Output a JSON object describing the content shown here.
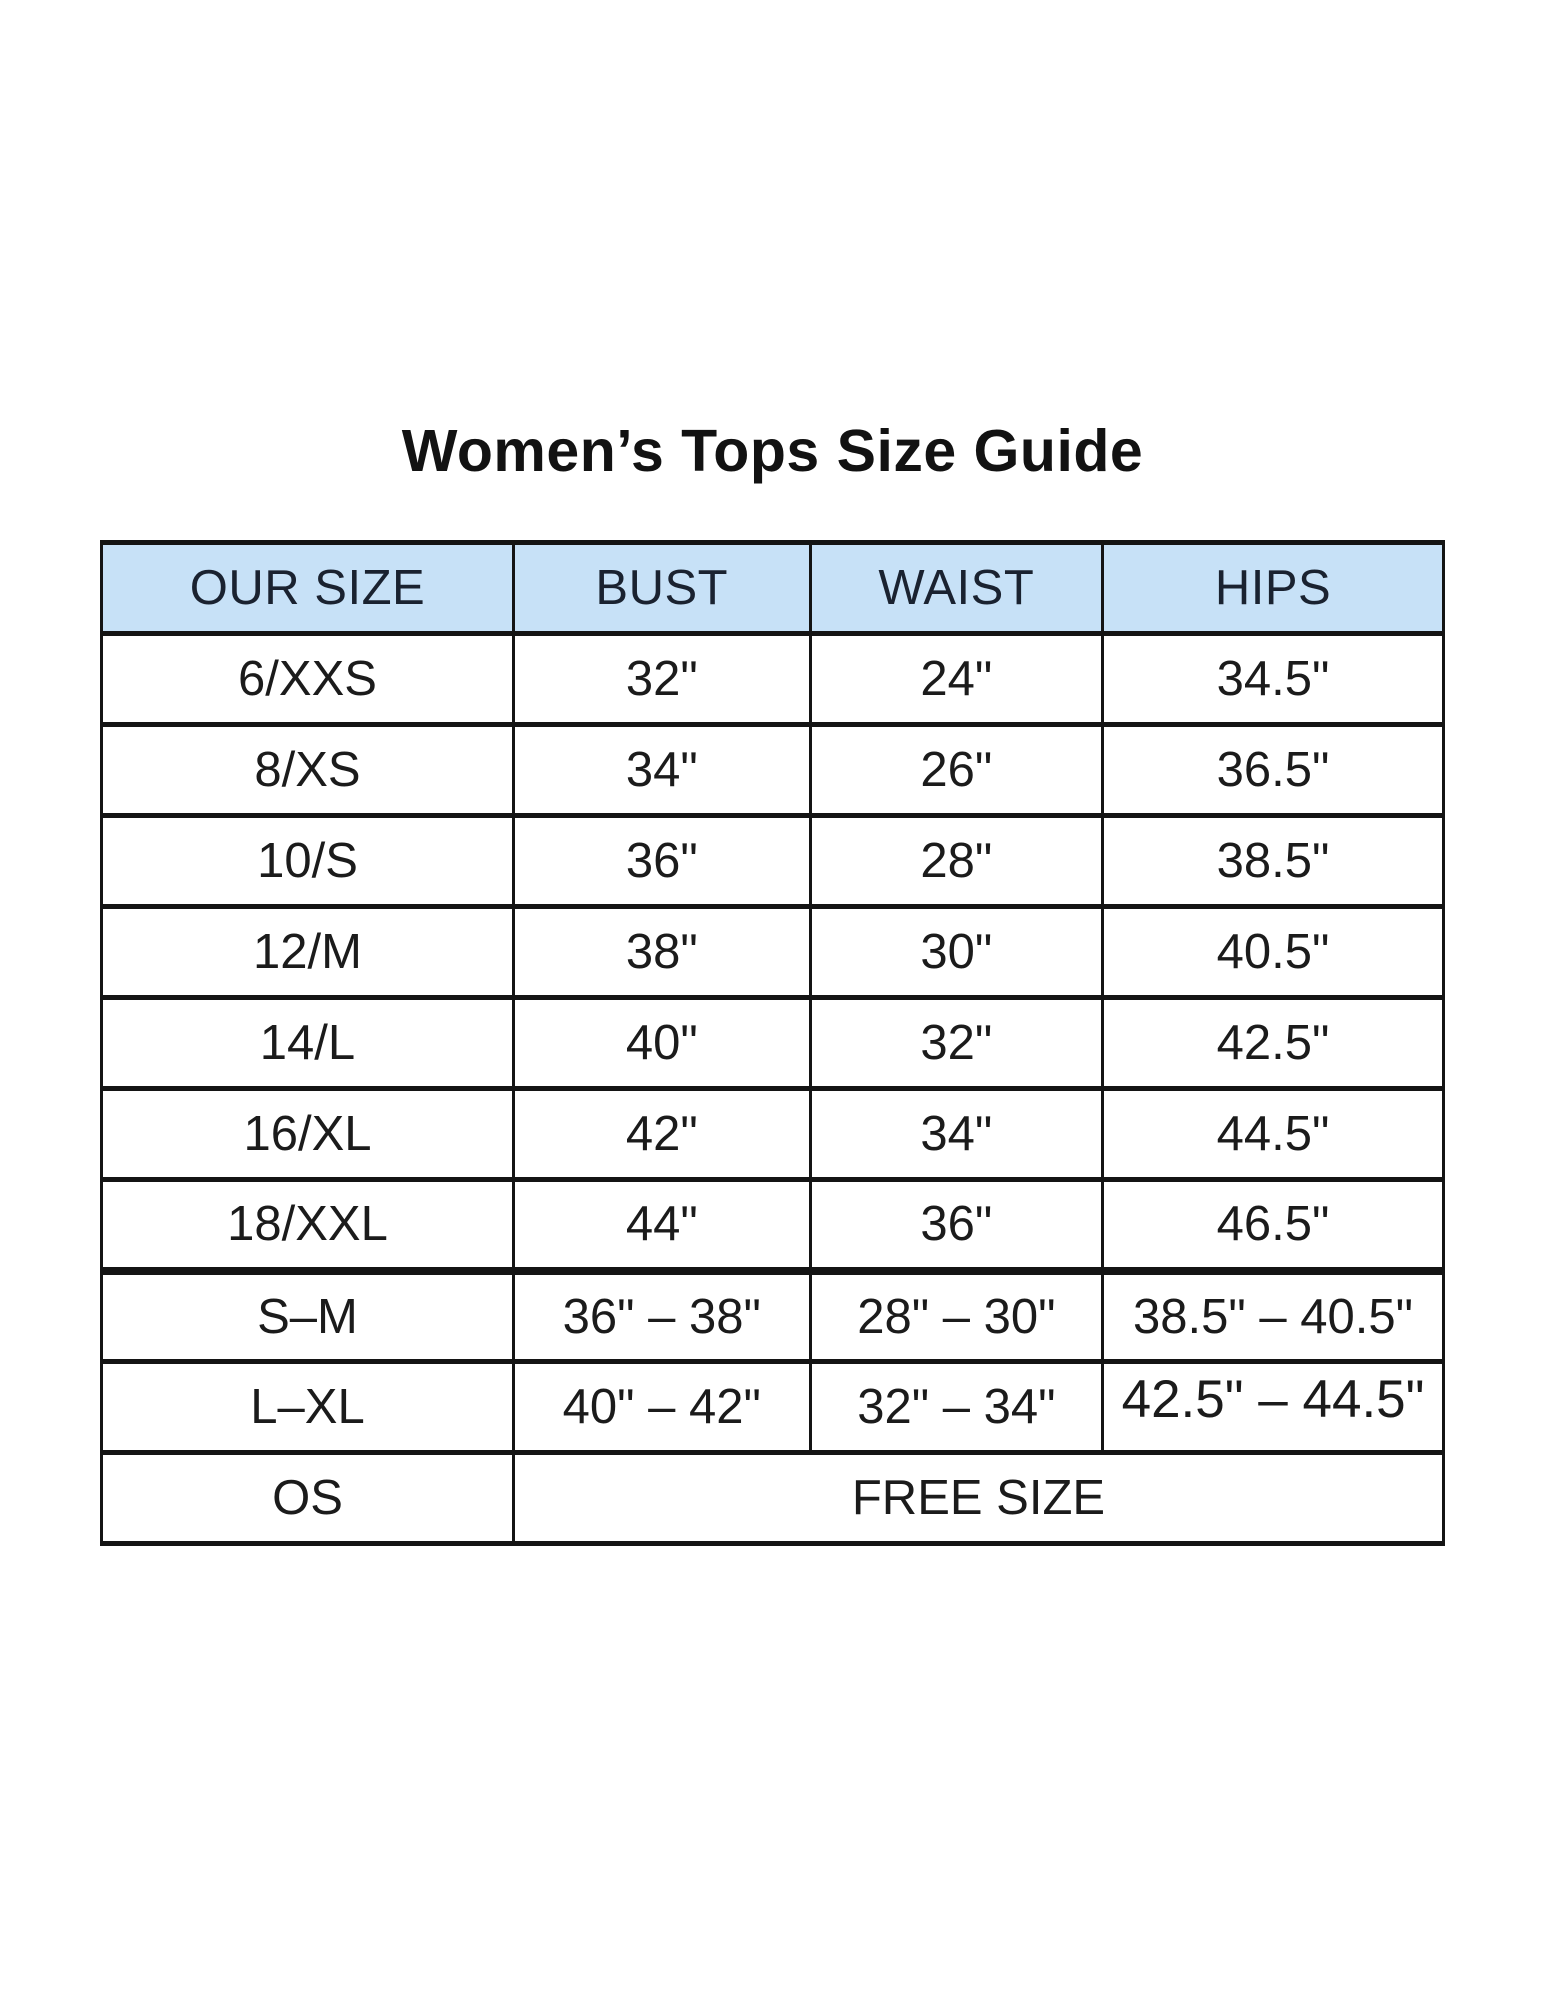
{
  "page": {
    "title": "Women’s Tops Size Guide",
    "background_color": "#ffffff"
  },
  "table": {
    "header_bg_color": "#c7e1f7",
    "border_color": "#141414",
    "text_color": "#1b1b1b",
    "columns": [
      "OUR SIZE",
      "BUST",
      "WAIST",
      "HIPS"
    ],
    "rows": [
      {
        "size": "6/XXS",
        "bust": "32\"",
        "waist": "24\"",
        "hips": "34.5\""
      },
      {
        "size": "8/XS",
        "bust": "34\"",
        "waist": "26\"",
        "hips": "36.5\""
      },
      {
        "size": "10/S",
        "bust": "36\"",
        "waist": "28\"",
        "hips": "38.5\""
      },
      {
        "size": "12/M",
        "bust": "38\"",
        "waist": "30\"",
        "hips": "40.5\""
      },
      {
        "size": "14/L",
        "bust": "40\"",
        "waist": "32\"",
        "hips": "42.5\""
      },
      {
        "size": "16/XL",
        "bust": "42\"",
        "waist": "34\"",
        "hips": "44.5\""
      },
      {
        "size": "18/XXL",
        "bust": "44\"",
        "waist": "36\"",
        "hips": "46.5\""
      },
      {
        "size": "S–M",
        "bust": "36\" – 38\"",
        "waist": "28\" – 30\"",
        "hips": "38.5\" – 40.5\""
      },
      {
        "size": "L–XL",
        "bust": "40\" – 42\"",
        "waist": "32\" – 34\"",
        "hips": "42.5\" – 44.5\""
      }
    ],
    "free_size_row": {
      "size": "OS",
      "value": "FREE SIZE"
    }
  }
}
